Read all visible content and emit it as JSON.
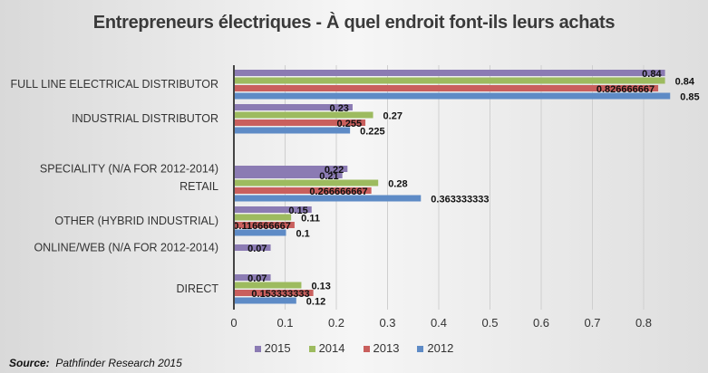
{
  "chart_data": {
    "type": "bar",
    "orientation": "horizontal",
    "title": "Entrepreneurs électriques - À quel endroit font-ils leurs achats",
    "xlabel": "",
    "ylabel": "",
    "xlim": [
      0,
      0.8
    ],
    "xticks": [
      "0",
      "0.1",
      "0.2",
      "0.3",
      "0.4",
      "0.5",
      "0.6",
      "0.7",
      "0.8"
    ],
    "grid": true,
    "legend_position": "bottom",
    "categories": [
      "FULL LINE ELECTRICAL DISTRIBUTOR",
      "INDUSTRIAL DISTRIBUTOR",
      "SPECIALITY (N/A FOR 2012-2014)",
      "RETAIL",
      "OTHER (HYBRID INDUSTRIAL)",
      "ONLINE/WEB (N/A FOR 2012-2014)",
      "DIRECT"
    ],
    "series": [
      {
        "name": "2015",
        "color": "#8b7bb3",
        "values": [
          0.84,
          0.23,
          0.22,
          0.21,
          0.15,
          0.07,
          0.07
        ],
        "labels": [
          "0.84",
          "0.23",
          "0.22",
          "0.21",
          "0.15",
          "0.07",
          "0.07"
        ]
      },
      {
        "name": "2014",
        "color": "#9dbb5f",
        "values": [
          0.84,
          0.27,
          null,
          0.28,
          0.11,
          null,
          0.13
        ],
        "labels": [
          "0.84",
          "0.27",
          null,
          "0.28",
          "0.11",
          null,
          "0.13"
        ]
      },
      {
        "name": "2013",
        "color": "#c95f5d",
        "values": [
          0.826666667,
          0.255,
          null,
          0.266666667,
          0.116666667,
          null,
          0.153333333
        ],
        "labels": [
          "0.826666667",
          "0.255",
          null,
          "0.266666667",
          "0.116666667",
          null,
          "0.153333333"
        ]
      },
      {
        "name": "2012",
        "color": "#5e8bc6",
        "values": [
          0.85,
          0.225,
          null,
          0.363333333,
          0.1,
          null,
          0.12
        ],
        "labels": [
          "0.85",
          "0.225",
          null,
          "0.363333333",
          "0.1",
          null,
          "0.12"
        ]
      }
    ]
  },
  "source": {
    "label": "Source:",
    "text": "Pathfinder Research 2015"
  }
}
